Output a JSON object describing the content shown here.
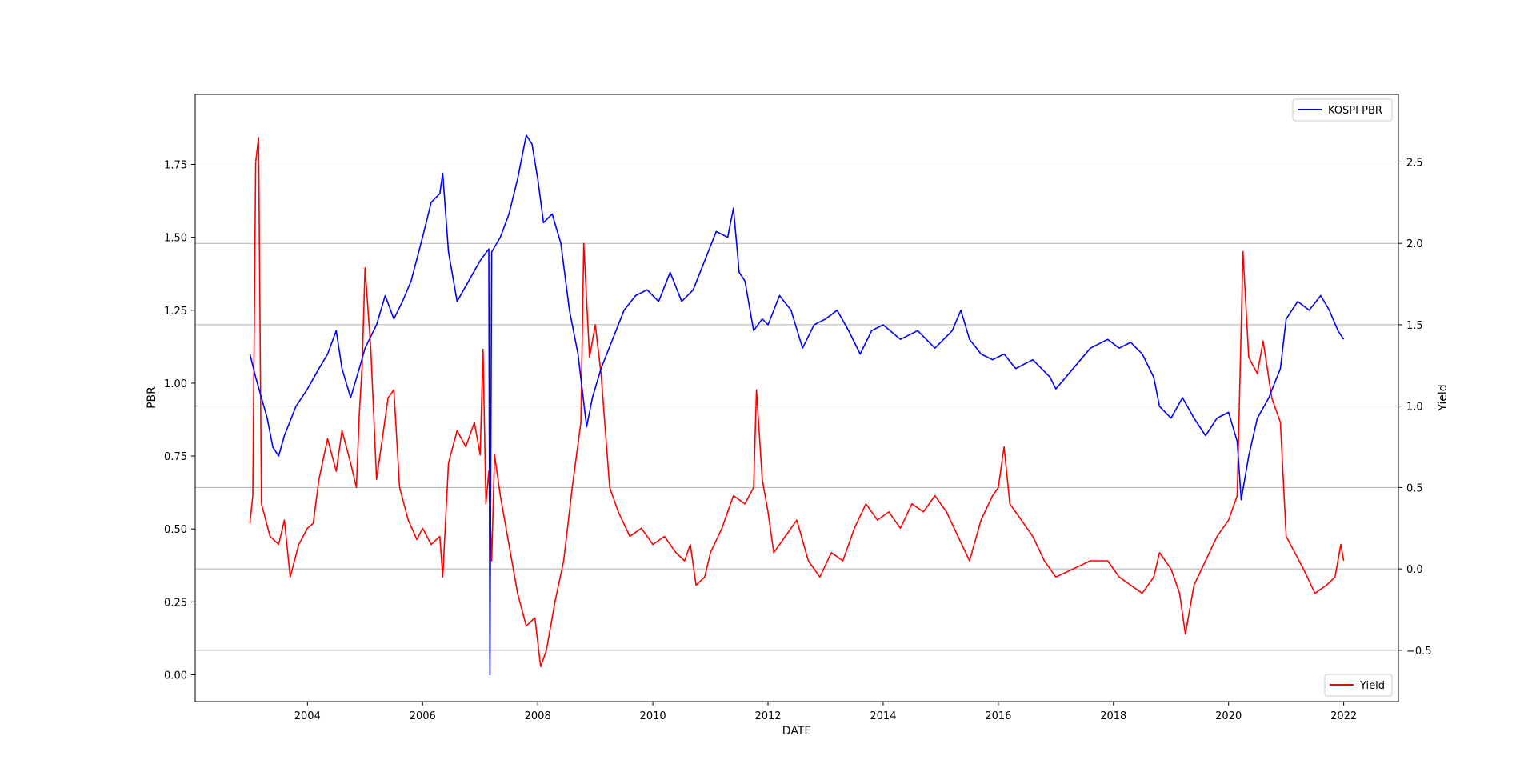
{
  "chart_data": {
    "type": "line",
    "xlabel": "DATE",
    "ylabel": "PBR",
    "y2label": "Yield",
    "xlim": [
      2002.05,
      2022.95
    ],
    "ylim": [
      -0.092,
      1.99
    ],
    "y2lim": [
      -0.815,
      2.915
    ],
    "x_ticks": [
      2004,
      2006,
      2008,
      2010,
      2012,
      2014,
      2016,
      2018,
      2020,
      2022
    ],
    "y_ticks": [
      0.0,
      0.25,
      0.5,
      0.75,
      1.0,
      1.25,
      1.5,
      1.75
    ],
    "y2_ticks": [
      -0.5,
      0.0,
      0.5,
      1.0,
      1.5,
      2.0,
      2.5
    ],
    "grid": "horizontal lines at Yield ticks",
    "legend_pbr": "KOSPI PBR",
    "legend_yield": "Yield",
    "legend_pbr_position": "top-right",
    "legend_yield_position": "bottom-right",
    "colors": {
      "pbr": "#0000ff",
      "yield": "#ff0000"
    },
    "series": [
      {
        "name": "KOSPI PBR",
        "axis": "left",
        "color": "#0000ff",
        "points": [
          [
            2003.0,
            1.1
          ],
          [
            2003.1,
            1.02
          ],
          [
            2003.2,
            0.95
          ],
          [
            2003.3,
            0.88
          ],
          [
            2003.4,
            0.78
          ],
          [
            2003.5,
            0.75
          ],
          [
            2003.6,
            0.82
          ],
          [
            2003.8,
            0.92
          ],
          [
            2004.0,
            0.98
          ],
          [
            2004.2,
            1.05
          ],
          [
            2004.35,
            1.1
          ],
          [
            2004.5,
            1.18
          ],
          [
            2004.6,
            1.05
          ],
          [
            2004.75,
            0.95
          ],
          [
            2004.9,
            1.05
          ],
          [
            2005.0,
            1.12
          ],
          [
            2005.2,
            1.2
          ],
          [
            2005.35,
            1.3
          ],
          [
            2005.5,
            1.22
          ],
          [
            2005.65,
            1.28
          ],
          [
            2005.8,
            1.35
          ],
          [
            2006.0,
            1.5
          ],
          [
            2006.15,
            1.62
          ],
          [
            2006.3,
            1.65
          ],
          [
            2006.35,
            1.72
          ],
          [
            2006.45,
            1.45
          ],
          [
            2006.6,
            1.28
          ],
          [
            2006.8,
            1.35
          ],
          [
            2007.0,
            1.42
          ],
          [
            2007.15,
            1.46
          ],
          [
            2007.17,
            0.0
          ],
          [
            2007.2,
            1.45
          ],
          [
            2007.35,
            1.5
          ],
          [
            2007.5,
            1.58
          ],
          [
            2007.65,
            1.7
          ],
          [
            2007.8,
            1.85
          ],
          [
            2007.9,
            1.82
          ],
          [
            2008.0,
            1.7
          ],
          [
            2008.1,
            1.55
          ],
          [
            2008.25,
            1.58
          ],
          [
            2008.4,
            1.48
          ],
          [
            2008.55,
            1.25
          ],
          [
            2008.7,
            1.1
          ],
          [
            2008.85,
            0.85
          ],
          [
            2008.95,
            0.95
          ],
          [
            2009.1,
            1.05
          ],
          [
            2009.3,
            1.15
          ],
          [
            2009.5,
            1.25
          ],
          [
            2009.7,
            1.3
          ],
          [
            2009.9,
            1.32
          ],
          [
            2010.1,
            1.28
          ],
          [
            2010.3,
            1.38
          ],
          [
            2010.5,
            1.28
          ],
          [
            2010.7,
            1.32
          ],
          [
            2010.9,
            1.42
          ],
          [
            2011.1,
            1.52
          ],
          [
            2011.3,
            1.5
          ],
          [
            2011.4,
            1.6
          ],
          [
            2011.5,
            1.38
          ],
          [
            2011.6,
            1.35
          ],
          [
            2011.75,
            1.18
          ],
          [
            2011.9,
            1.22
          ],
          [
            2012.0,
            1.2
          ],
          [
            2012.2,
            1.3
          ],
          [
            2012.4,
            1.25
          ],
          [
            2012.6,
            1.12
          ],
          [
            2012.8,
            1.2
          ],
          [
            2013.0,
            1.22
          ],
          [
            2013.2,
            1.25
          ],
          [
            2013.4,
            1.18
          ],
          [
            2013.6,
            1.1
          ],
          [
            2013.8,
            1.18
          ],
          [
            2014.0,
            1.2
          ],
          [
            2014.3,
            1.15
          ],
          [
            2014.6,
            1.18
          ],
          [
            2014.9,
            1.12
          ],
          [
            2015.2,
            1.18
          ],
          [
            2015.35,
            1.25
          ],
          [
            2015.5,
            1.15
          ],
          [
            2015.7,
            1.1
          ],
          [
            2015.9,
            1.08
          ],
          [
            2016.1,
            1.1
          ],
          [
            2016.3,
            1.05
          ],
          [
            2016.6,
            1.08
          ],
          [
            2016.9,
            1.02
          ],
          [
            2017.0,
            0.98
          ],
          [
            2017.3,
            1.05
          ],
          [
            2017.6,
            1.12
          ],
          [
            2017.9,
            1.15
          ],
          [
            2018.1,
            1.12
          ],
          [
            2018.3,
            1.14
          ],
          [
            2018.5,
            1.1
          ],
          [
            2018.7,
            1.02
          ],
          [
            2018.8,
            0.92
          ],
          [
            2019.0,
            0.88
          ],
          [
            2019.2,
            0.95
          ],
          [
            2019.4,
            0.88
          ],
          [
            2019.6,
            0.82
          ],
          [
            2019.8,
            0.88
          ],
          [
            2020.0,
            0.9
          ],
          [
            2020.15,
            0.8
          ],
          [
            2020.22,
            0.6
          ],
          [
            2020.35,
            0.75
          ],
          [
            2020.5,
            0.88
          ],
          [
            2020.7,
            0.95
          ],
          [
            2020.9,
            1.05
          ],
          [
            2021.0,
            1.22
          ],
          [
            2021.2,
            1.28
          ],
          [
            2021.4,
            1.25
          ],
          [
            2021.6,
            1.3
          ],
          [
            2021.75,
            1.25
          ],
          [
            2021.9,
            1.18
          ],
          [
            2022.0,
            1.15
          ]
        ]
      },
      {
        "name": "Yield",
        "axis": "right",
        "color": "#ff0000",
        "points": [
          [
            2003.0,
            0.28
          ],
          [
            2003.05,
            0.45
          ],
          [
            2003.1,
            2.5
          ],
          [
            2003.15,
            2.65
          ],
          [
            2003.2,
            0.4
          ],
          [
            2003.35,
            0.2
          ],
          [
            2003.5,
            0.15
          ],
          [
            2003.6,
            0.3
          ],
          [
            2003.7,
            -0.05
          ],
          [
            2003.85,
            0.15
          ],
          [
            2004.0,
            0.25
          ],
          [
            2004.1,
            0.28
          ],
          [
            2004.2,
            0.55
          ],
          [
            2004.35,
            0.8
          ],
          [
            2004.5,
            0.6
          ],
          [
            2004.6,
            0.85
          ],
          [
            2004.75,
            0.65
          ],
          [
            2004.85,
            0.5
          ],
          [
            2004.9,
            0.95
          ],
          [
            2004.95,
            1.25
          ],
          [
            2005.0,
            1.85
          ],
          [
            2005.1,
            1.35
          ],
          [
            2005.2,
            0.55
          ],
          [
            2005.3,
            0.8
          ],
          [
            2005.4,
            1.05
          ],
          [
            2005.5,
            1.1
          ],
          [
            2005.6,
            0.5
          ],
          [
            2005.75,
            0.3
          ],
          [
            2005.9,
            0.18
          ],
          [
            2006.0,
            0.25
          ],
          [
            2006.15,
            0.15
          ],
          [
            2006.3,
            0.2
          ],
          [
            2006.35,
            -0.05
          ],
          [
            2006.45,
            0.65
          ],
          [
            2006.6,
            0.85
          ],
          [
            2006.75,
            0.75
          ],
          [
            2006.9,
            0.9
          ],
          [
            2007.0,
            0.7
          ],
          [
            2007.05,
            1.35
          ],
          [
            2007.1,
            0.4
          ],
          [
            2007.15,
            0.6
          ],
          [
            2007.2,
            0.05
          ],
          [
            2007.25,
            0.7
          ],
          [
            2007.35,
            0.45
          ],
          [
            2007.5,
            0.15
          ],
          [
            2007.65,
            -0.15
          ],
          [
            2007.8,
            -0.35
          ],
          [
            2007.95,
            -0.3
          ],
          [
            2008.05,
            -0.6
          ],
          [
            2008.15,
            -0.5
          ],
          [
            2008.3,
            -0.2
          ],
          [
            2008.45,
            0.05
          ],
          [
            2008.6,
            0.5
          ],
          [
            2008.75,
            0.9
          ],
          [
            2008.8,
            2.0
          ],
          [
            2008.9,
            1.3
          ],
          [
            2009.0,
            1.5
          ],
          [
            2009.1,
            1.2
          ],
          [
            2009.25,
            0.5
          ],
          [
            2009.4,
            0.35
          ],
          [
            2009.6,
            0.2
          ],
          [
            2009.8,
            0.25
          ],
          [
            2010.0,
            0.15
          ],
          [
            2010.2,
            0.2
          ],
          [
            2010.4,
            0.1
          ],
          [
            2010.55,
            0.05
          ],
          [
            2010.65,
            0.15
          ],
          [
            2010.75,
            -0.1
          ],
          [
            2010.9,
            -0.05
          ],
          [
            2011.0,
            0.1
          ],
          [
            2011.2,
            0.25
          ],
          [
            2011.4,
            0.45
          ],
          [
            2011.6,
            0.4
          ],
          [
            2011.75,
            0.5
          ],
          [
            2011.8,
            1.1
          ],
          [
            2011.9,
            0.55
          ],
          [
            2012.0,
            0.35
          ],
          [
            2012.1,
            0.1
          ],
          [
            2012.3,
            0.2
          ],
          [
            2012.5,
            0.3
          ],
          [
            2012.7,
            0.05
          ],
          [
            2012.9,
            -0.05
          ],
          [
            2013.1,
            0.1
          ],
          [
            2013.3,
            0.05
          ],
          [
            2013.5,
            0.25
          ],
          [
            2013.7,
            0.4
          ],
          [
            2013.9,
            0.3
          ],
          [
            2014.1,
            0.35
          ],
          [
            2014.3,
            0.25
          ],
          [
            2014.5,
            0.4
          ],
          [
            2014.7,
            0.35
          ],
          [
            2014.9,
            0.45
          ],
          [
            2015.1,
            0.35
          ],
          [
            2015.3,
            0.2
          ],
          [
            2015.5,
            0.05
          ],
          [
            2015.7,
            0.3
          ],
          [
            2015.9,
            0.45
          ],
          [
            2016.0,
            0.5
          ],
          [
            2016.1,
            0.75
          ],
          [
            2016.2,
            0.4
          ],
          [
            2016.4,
            0.3
          ],
          [
            2016.6,
            0.2
          ],
          [
            2016.8,
            0.05
          ],
          [
            2017.0,
            -0.05
          ],
          [
            2017.3,
            0.0
          ],
          [
            2017.6,
            0.05
          ],
          [
            2017.9,
            0.05
          ],
          [
            2018.1,
            -0.05
          ],
          [
            2018.3,
            -0.1
          ],
          [
            2018.5,
            -0.15
          ],
          [
            2018.7,
            -0.05
          ],
          [
            2018.8,
            0.1
          ],
          [
            2019.0,
            0.0
          ],
          [
            2019.15,
            -0.15
          ],
          [
            2019.25,
            -0.4
          ],
          [
            2019.4,
            -0.1
          ],
          [
            2019.6,
            0.05
          ],
          [
            2019.8,
            0.2
          ],
          [
            2020.0,
            0.3
          ],
          [
            2020.15,
            0.45
          ],
          [
            2020.25,
            1.95
          ],
          [
            2020.35,
            1.3
          ],
          [
            2020.5,
            1.2
          ],
          [
            2020.6,
            1.4
          ],
          [
            2020.75,
            1.05
          ],
          [
            2020.9,
            0.9
          ],
          [
            2021.0,
            0.2
          ],
          [
            2021.15,
            0.1
          ],
          [
            2021.3,
            0.0
          ],
          [
            2021.5,
            -0.15
          ],
          [
            2021.7,
            -0.1
          ],
          [
            2021.85,
            -0.05
          ],
          [
            2021.95,
            0.15
          ],
          [
            2022.0,
            0.05
          ]
        ]
      }
    ]
  }
}
